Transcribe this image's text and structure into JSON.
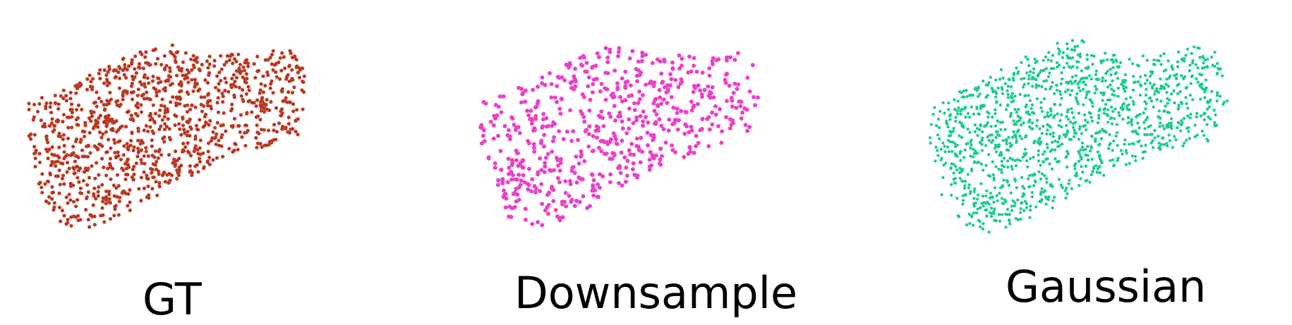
{
  "panels": [
    {
      "id": "gt",
      "label": "GT",
      "color": "#b93a24"
    },
    {
      "id": "down",
      "label": "Downsample",
      "color": "#e943c7"
    },
    {
      "id": "gauss",
      "label": "Gaussian",
      "color": "#1fcc8f"
    }
  ]
}
